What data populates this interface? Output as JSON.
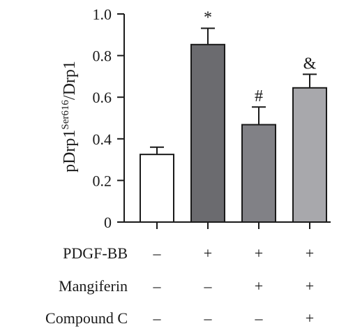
{
  "chart_data": {
    "type": "bar",
    "ylabel": {
      "main": "pDrp1",
      "superscript": "Ser616",
      "suffix": "/Drp1"
    },
    "ylim": [
      0,
      1.0
    ],
    "yticks": [
      0,
      0.2,
      0.4,
      0.6,
      0.8,
      1.0
    ],
    "ytick_labels": [
      "0",
      "0.2",
      "0.4",
      "0.6",
      "0.8",
      "1.0"
    ],
    "values": [
      0.325,
      0.853,
      0.468,
      0.645
    ],
    "errors": [
      0.035,
      0.078,
      0.085,
      0.065
    ],
    "bar_colors": [
      "#ffffff",
      "#6b6b6f",
      "#818186",
      "#a8a8ac"
    ],
    "annotations": [
      "",
      "*",
      "#",
      "&"
    ],
    "grid": false,
    "legend": "none",
    "treatment_rows": [
      {
        "label": "PDGF-BB",
        "signs": [
          "–",
          "+",
          "+",
          "+"
        ]
      },
      {
        "label": "Mangiferin",
        "signs": [
          "–",
          "–",
          "+",
          "+"
        ]
      },
      {
        "label": "Compound C",
        "signs": [
          "–",
          "–",
          "–",
          "+"
        ]
      }
    ]
  }
}
